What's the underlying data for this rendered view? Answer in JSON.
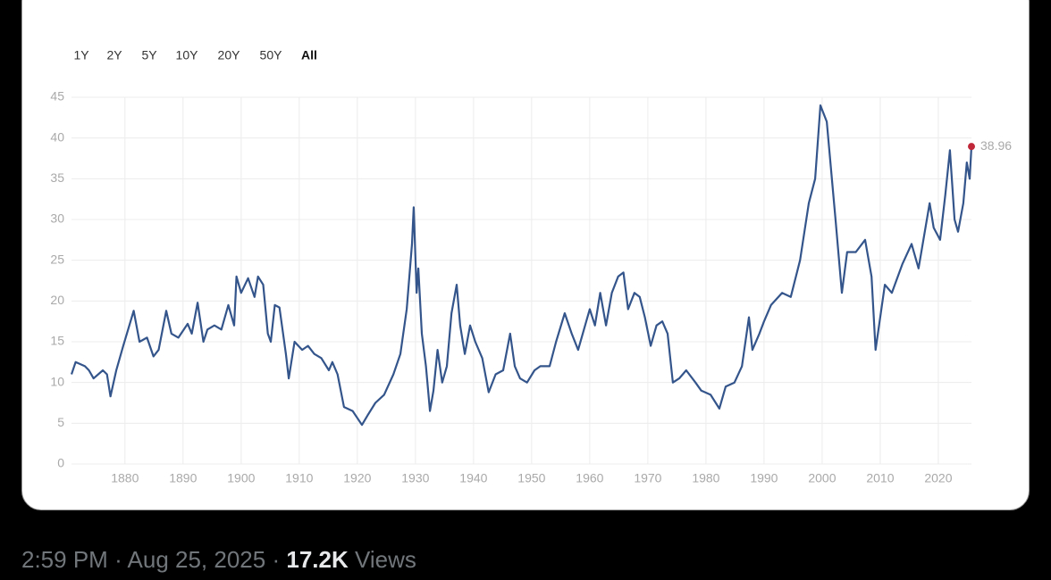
{
  "chart_data": {
    "type": "line",
    "range_buttons": [
      "1Y",
      "2Y",
      "5Y",
      "10Y",
      "20Y",
      "50Y",
      "All"
    ],
    "active_range": "All",
    "x": [
      1870.8,
      1871.5,
      1873.1,
      1873.8,
      1874.6,
      1876.2,
      1876.9,
      1877.5,
      1878.5,
      1879.7,
      1881.5,
      1882.5,
      1883.8,
      1884.9,
      1885.8,
      1887.1,
      1888.0,
      1889.2,
      1890.8,
      1891.5,
      1892.5,
      1893.5,
      1894.2,
      1895.4,
      1896.6,
      1897.8,
      1898.8,
      1899.2,
      1900.0,
      1901.2,
      1902.3,
      1902.9,
      1903.8,
      1904.6,
      1905.1,
      1905.8,
      1906.6,
      1907.7,
      1908.2,
      1909.2,
      1910.5,
      1911.5,
      1912.6,
      1913.8,
      1915.1,
      1915.7,
      1916.6,
      1917.7,
      1919.2,
      1920.8,
      1921.8,
      1923.1,
      1924.6,
      1926.2,
      1927.4,
      1928.5,
      1929.4,
      1929.7,
      1930.2,
      1930.5,
      1931.1,
      1931.8,
      1932.5,
      1933.1,
      1933.8,
      1934.6,
      1935.4,
      1936.2,
      1937.1,
      1937.7,
      1938.5,
      1939.4,
      1940.3,
      1941.5,
      1942.6,
      1943.8,
      1945.1,
      1946.3,
      1947.1,
      1948.0,
      1949.2,
      1950.5,
      1951.5,
      1953.1,
      1954.2,
      1955.7,
      1956.9,
      1958.0,
      1959.2,
      1960.0,
      1960.9,
      1961.8,
      1962.8,
      1963.8,
      1964.9,
      1965.8,
      1966.6,
      1967.7,
      1968.6,
      1969.5,
      1970.5,
      1971.5,
      1972.5,
      1973.4,
      1974.3,
      1975.4,
      1976.6,
      1978.2,
      1979.2,
      1980.8,
      1982.3,
      1983.4,
      1984.9,
      1986.2,
      1987.4,
      1988.0,
      1989.2,
      1990.0,
      1991.2,
      1993.1,
      1994.6,
      1996.2,
      1997.7,
      1998.8,
      1999.7,
      2000.8,
      2002.3,
      2003.4,
      2004.3,
      2005.8,
      2007.4,
      2008.5,
      2009.2,
      2010.8,
      2012.0,
      2013.8,
      2015.4,
      2016.6,
      2018.5,
      2019.2,
      2020.3,
      2021.2,
      2022.0,
      2022.8,
      2023.4,
      2024.3,
      2024.9,
      2025.4,
      2025.7
    ],
    "values": [
      11,
      12.5,
      12,
      11.5,
      10.5,
      11.5,
      11,
      8.3,
      11.5,
      14.5,
      18.8,
      15,
      15.5,
      13.2,
      14,
      18.8,
      16,
      15.5,
      17.2,
      16,
      19.8,
      15,
      16.5,
      17,
      16.5,
      19.5,
      17,
      23,
      21,
      22.8,
      20.5,
      23,
      22,
      16,
      15,
      19.5,
      19.2,
      13.5,
      10.5,
      15,
      14,
      14.5,
      13.5,
      13,
      11.5,
      12.5,
      11,
      7,
      6.5,
      4.8,
      6,
      7.5,
      8.5,
      11,
      13.5,
      19,
      27,
      31.5,
      21,
      24,
      16,
      12,
      6.5,
      9,
      14,
      10,
      12,
      18.5,
      22,
      17,
      13.5,
      17,
      15,
      13,
      8.8,
      11,
      11.5,
      16,
      12,
      10.5,
      10,
      11.5,
      12,
      12,
      15,
      18.5,
      16,
      14,
      17,
      19,
      17,
      21,
      17,
      21,
      23,
      23.5,
      19,
      21,
      20.5,
      18,
      14.5,
      17,
      17.5,
      16,
      10,
      10.5,
      11.5,
      10,
      9,
      8.5,
      6.8,
      9.5,
      10,
      12,
      18,
      14,
      16,
      17.5,
      19.5,
      21,
      20.5,
      25,
      32,
      35,
      44,
      42,
      30,
      21,
      26,
      26,
      27.5,
      23,
      14,
      22,
      21,
      24.5,
      27,
      24,
      32,
      29,
      27.5,
      33,
      38.5,
      30,
      28.5,
      32,
      37,
      35,
      38.96
    ],
    "color": "#34558b",
    "highlight": {
      "x": 2025.7,
      "value": 38.96,
      "color": "#c0283a"
    },
    "xlim": [
      1870.8,
      2025.7
    ],
    "xticks": [
      1880,
      1890,
      1900,
      1910,
      1920,
      1930,
      1940,
      1950,
      1960,
      1970,
      1980,
      1990,
      2000,
      2010,
      2020
    ],
    "ylim": [
      0,
      45
    ],
    "yticks": [
      0,
      5,
      10,
      15,
      20,
      25,
      30,
      35,
      40,
      45
    ],
    "grid": true
  },
  "tweet": {
    "time": "2:59 PM",
    "separator": "·",
    "date": "Aug 25, 2025",
    "views": "17.2K",
    "views_label": "Views"
  }
}
